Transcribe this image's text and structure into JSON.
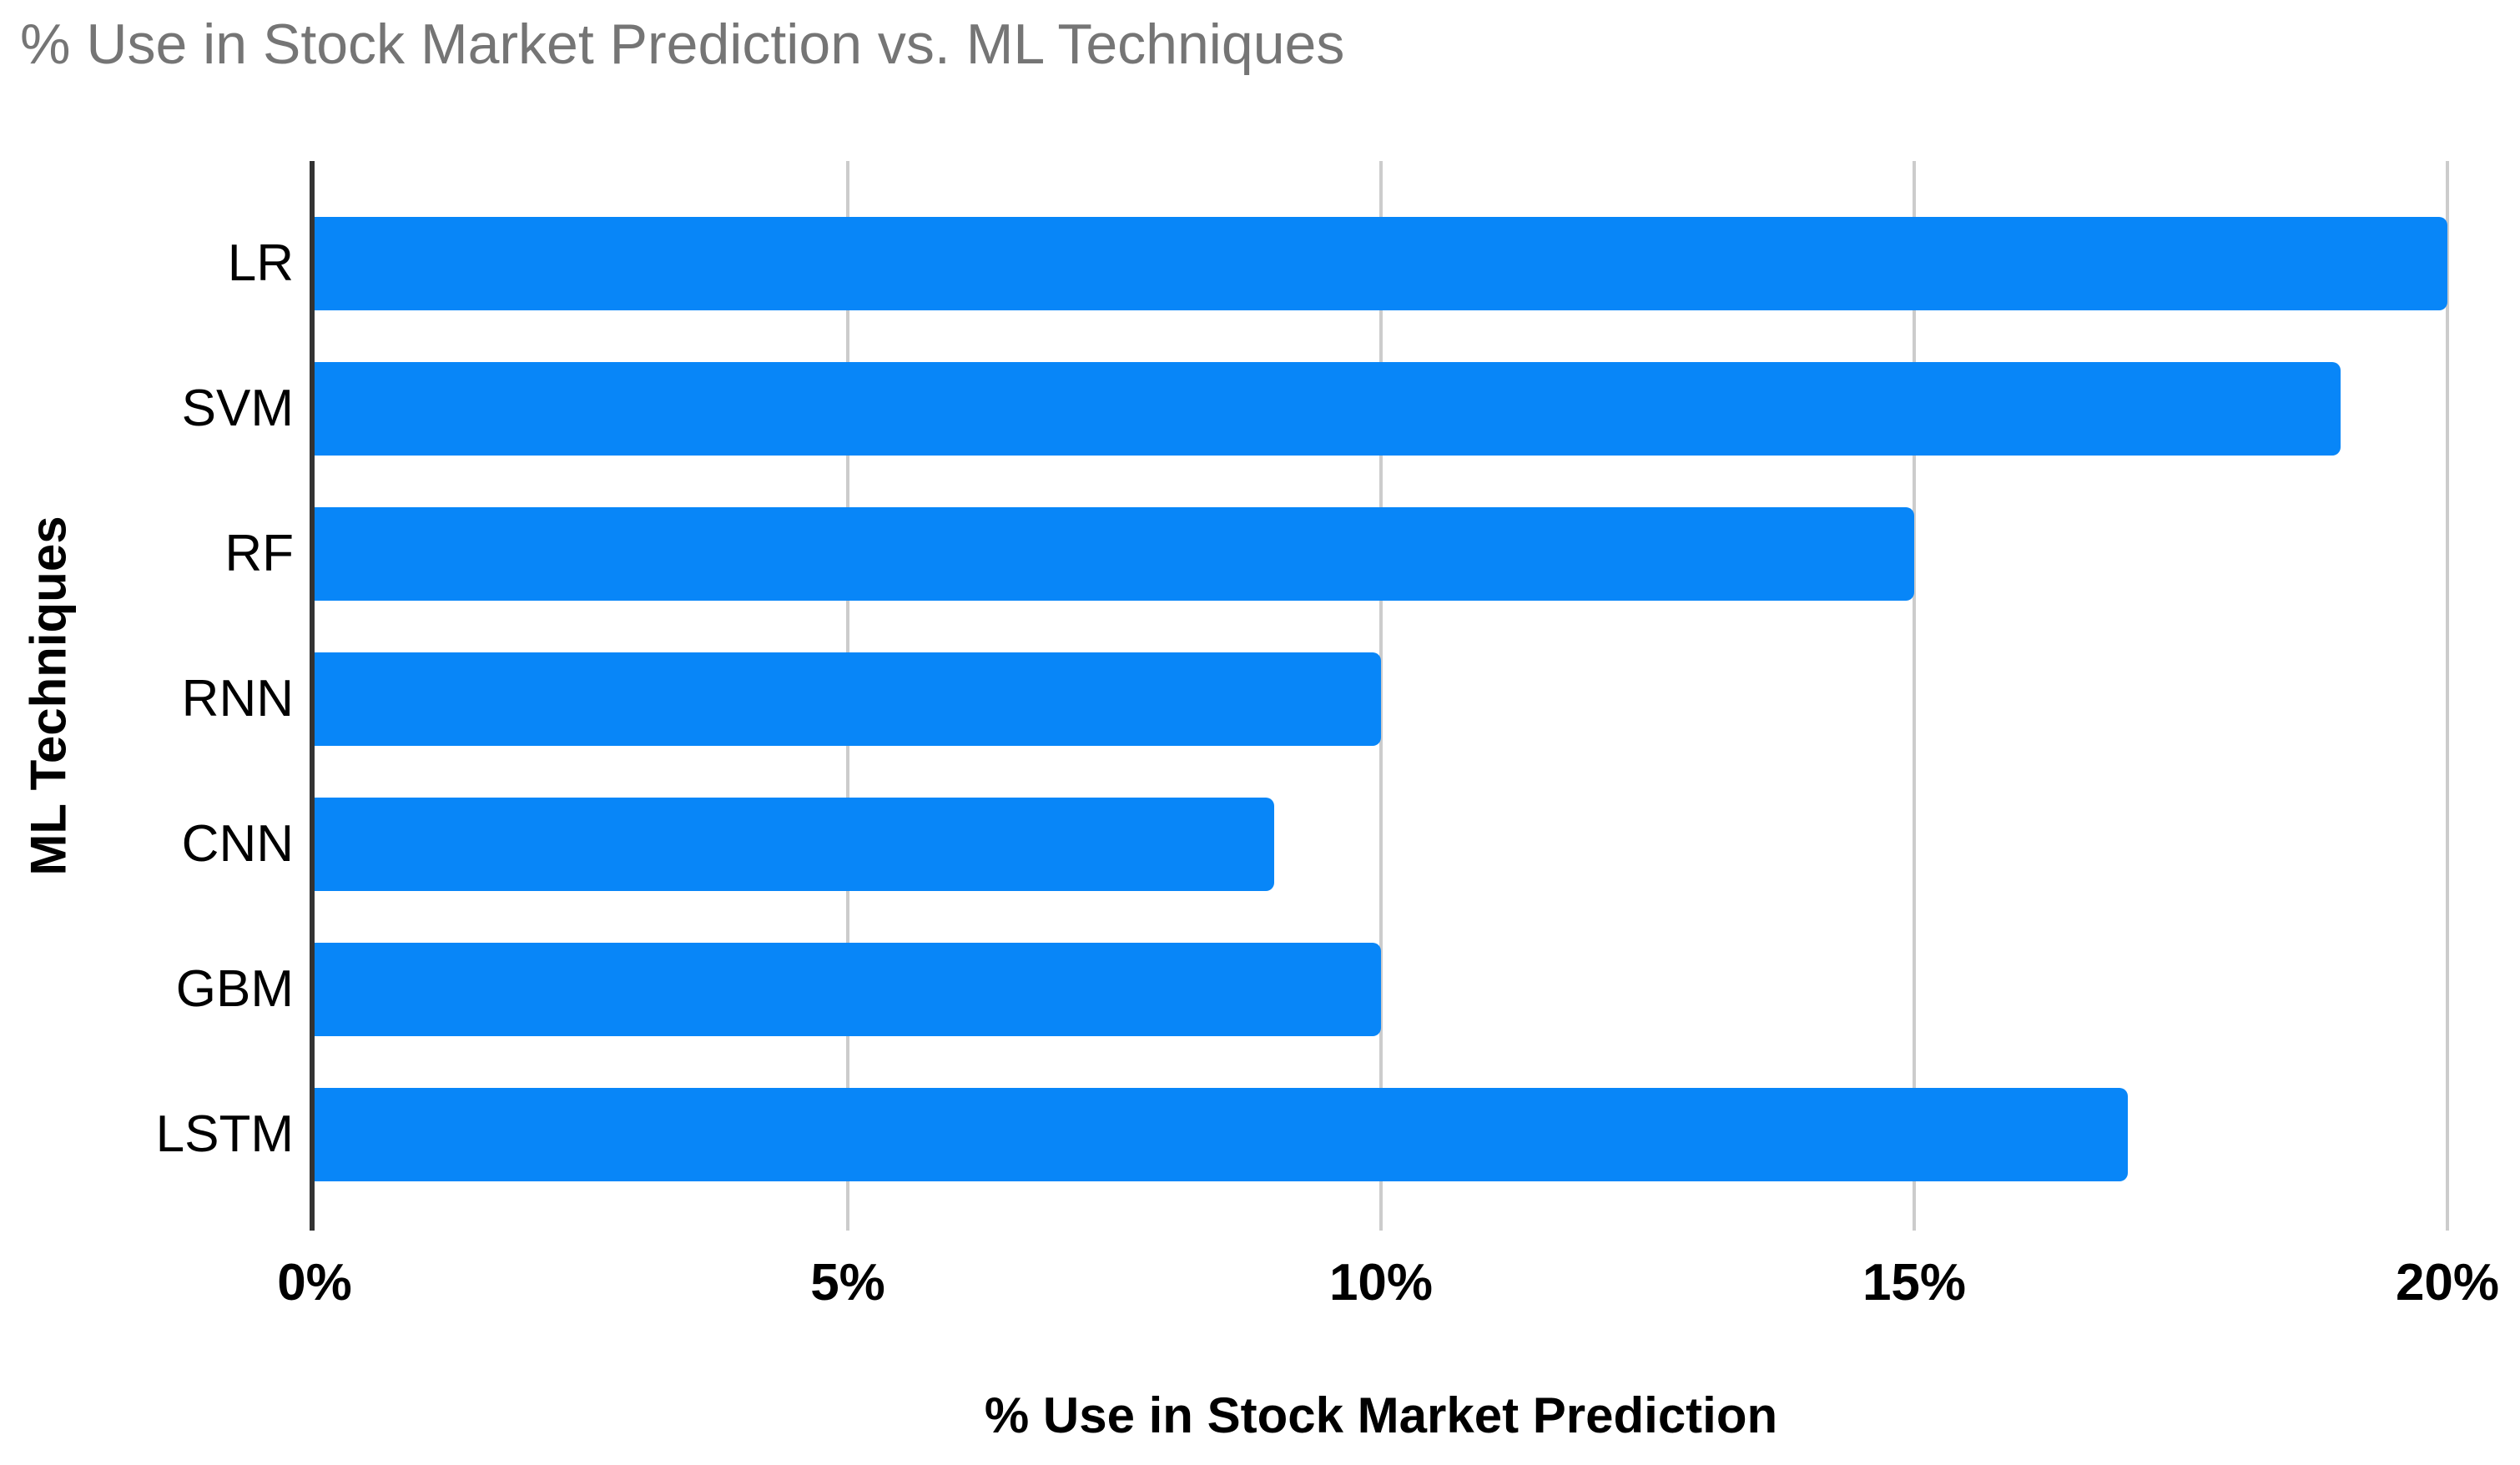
{
  "chart_data": {
    "type": "bar",
    "orientation": "horizontal",
    "title": "% Use in Stock Market Prediction vs. ML Techniques",
    "xlabel": "% Use in Stock Market Prediction",
    "ylabel": "ML Techniques",
    "categories": [
      "LR",
      "SVM",
      "RF",
      "RNN",
      "CNN",
      "GBM",
      "LSTM"
    ],
    "values": [
      20,
      19,
      15,
      10,
      9,
      10,
      17
    ],
    "xlim": [
      0,
      20
    ],
    "x_ticks": [
      {
        "value": 0,
        "label": "0%"
      },
      {
        "value": 5,
        "label": "5%"
      },
      {
        "value": 10,
        "label": "10%"
      },
      {
        "value": 15,
        "label": "15%"
      },
      {
        "value": 20,
        "label": "20%"
      }
    ],
    "grid": true,
    "legend": "none",
    "colors": {
      "bar": "#0886f8",
      "gridline": "#cccccc",
      "axis_line": "#333333",
      "title": "#757575",
      "labels": "#000000",
      "background": "#ffffff"
    }
  }
}
